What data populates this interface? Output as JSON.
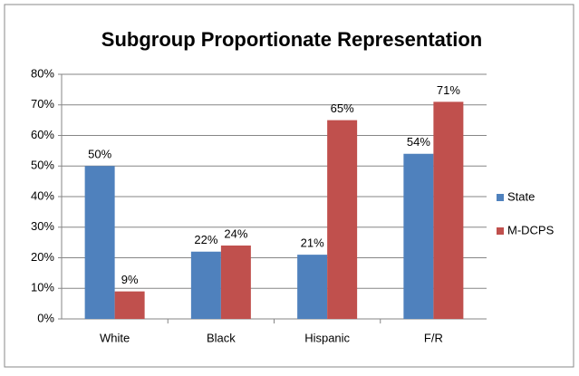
{
  "chart_data": {
    "type": "bar",
    "title": "Subgroup Proportionate Representation",
    "categories": [
      "White",
      "Black",
      "Hispanic",
      "F/R"
    ],
    "series": [
      {
        "name": "State",
        "color": "#4f81bd",
        "values": [
          50,
          22,
          21,
          54
        ],
        "value_labels": [
          "50%",
          "22%",
          "21%",
          "54%"
        ]
      },
      {
        "name": "M-DCPS",
        "color": "#c0504d",
        "values": [
          9,
          24,
          65,
          71
        ],
        "value_labels": [
          "9%",
          "24%",
          "65%",
          "71%"
        ]
      }
    ],
    "ylim": [
      0,
      80
    ],
    "yticks": [
      {
        "value": 0,
        "label": "0%"
      },
      {
        "value": 10,
        "label": "10%"
      },
      {
        "value": 20,
        "label": "20%"
      },
      {
        "value": 30,
        "label": "30%"
      },
      {
        "value": 40,
        "label": "40%"
      },
      {
        "value": 50,
        "label": "50%"
      },
      {
        "value": 60,
        "label": "60%"
      },
      {
        "value": 70,
        "label": "70%"
      },
      {
        "value": 80,
        "label": "80%"
      }
    ],
    "grid": true,
    "legend": "right"
  }
}
